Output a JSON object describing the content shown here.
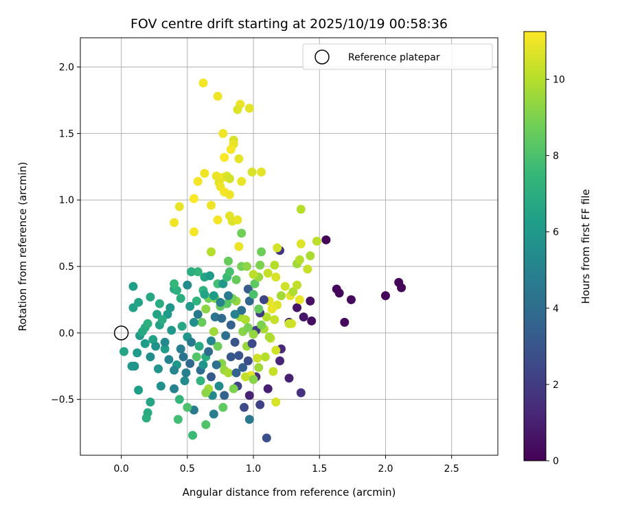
{
  "chart_data": {
    "type": "scatter",
    "title": "FOV centre drift starting at 2025/10/19 00:58:36",
    "xlabel": "Angular distance from reference (arcmin)",
    "ylabel": "Rotation from reference (arcmin)",
    "xlim": [
      -0.31,
      2.85
    ],
    "ylim": [
      -0.92,
      2.22
    ],
    "xticks": [
      "0.0",
      "0.5",
      "1.0",
      "1.5",
      "2.0",
      "2.5"
    ],
    "xtick_values": [
      0,
      0.5,
      1.0,
      1.5,
      2.0,
      2.5
    ],
    "yticks": [
      "−0.5",
      "0.0",
      "0.5",
      "1.0",
      "1.5",
      "2.0"
    ],
    "ytick_values": [
      -0.5,
      0,
      0.5,
      1.0,
      1.5,
      2.0
    ],
    "grid": true,
    "legend": {
      "label": "Reference platepar",
      "position": "top-right"
    },
    "reference_point": {
      "x": 0.0,
      "y": 0.0
    },
    "colorbar": {
      "label": "Hours from first FF file",
      "ticks": [
        "0",
        "2",
        "4",
        "6",
        "8",
        "10"
      ],
      "tick_values": [
        0,
        2,
        4,
        6,
        8,
        10
      ],
      "range": [
        0,
        11.25
      ],
      "colormap": [
        "#440154",
        "#482878",
        "#3e4989",
        "#31688e",
        "#26828e",
        "#1f9e89",
        "#35b779",
        "#6ece58",
        "#b5de2b",
        "#fde725"
      ]
    },
    "points": [
      {
        "x": 1.55,
        "y": 0.7,
        "t": 0.1
      },
      {
        "x": 1.63,
        "y": 0.33,
        "t": 0.2
      },
      {
        "x": 1.65,
        "y": 0.3,
        "t": 0.2
      },
      {
        "x": 1.74,
        "y": 0.25,
        "t": 0.3
      },
      {
        "x": 2.0,
        "y": 0.28,
        "t": 0.1
      },
      {
        "x": 2.1,
        "y": 0.38,
        "t": 0.2
      },
      {
        "x": 2.12,
        "y": 0.34,
        "t": 0.2
      },
      {
        "x": 1.69,
        "y": 0.08,
        "t": 0.3
      },
      {
        "x": 1.44,
        "y": 0.09,
        "t": 0.4
      },
      {
        "x": 1.43,
        "y": 0.24,
        "t": 0.5
      },
      {
        "x": 1.33,
        "y": 0.19,
        "t": 0.6
      },
      {
        "x": 1.38,
        "y": 0.12,
        "t": 0.7
      },
      {
        "x": 1.27,
        "y": 0.08,
        "t": 0.9
      },
      {
        "x": 1.2,
        "y": 0.62,
        "t": 1.8
      },
      {
        "x": 1.36,
        "y": -0.45,
        "t": 1.6
      },
      {
        "x": 1.27,
        "y": -0.34,
        "t": 1.0
      },
      {
        "x": 1.2,
        "y": -0.21,
        "t": 1.2
      },
      {
        "x": 1.21,
        "y": -0.12,
        "t": 1.3
      },
      {
        "x": 1.11,
        "y": -0.42,
        "t": 1.0
      },
      {
        "x": 1.05,
        "y": -0.54,
        "t": 2.2
      },
      {
        "x": 0.97,
        "y": -0.47,
        "t": 1.1
      },
      {
        "x": 0.93,
        "y": -0.56,
        "t": 2.6
      },
      {
        "x": 1.1,
        "y": -0.79,
        "t": 2.8
      },
      {
        "x": 0.97,
        "y": -0.65,
        "t": 4.5
      },
      {
        "x": 1.02,
        "y": -0.33,
        "t": 1.5
      },
      {
        "x": 0.88,
        "y": -0.4,
        "t": 2.3
      },
      {
        "x": 0.78,
        "y": -0.47,
        "t": 3.6
      },
      {
        "x": 0.7,
        "y": -0.61,
        "t": 4.8
      },
      {
        "x": 0.69,
        "y": -0.47,
        "t": 5.3
      },
      {
        "x": 0.68,
        "y": -0.33,
        "t": 3.2
      },
      {
        "x": 0.6,
        "y": -0.28,
        "t": 4.0
      },
      {
        "x": 0.52,
        "y": -0.23,
        "t": 3.8
      },
      {
        "x": 0.47,
        "y": -0.18,
        "t": 4.3
      },
      {
        "x": 0.55,
        "y": -0.58,
        "t": 4.6
      },
      {
        "x": 0.48,
        "y": -0.36,
        "t": 5.4
      },
      {
        "x": 0.4,
        "y": -0.42,
        "t": 5.0
      },
      {
        "x": 0.42,
        "y": -0.24,
        "t": 6.0
      },
      {
        "x": 0.3,
        "y": -0.4,
        "t": 5.6
      },
      {
        "x": 0.28,
        "y": -0.27,
        "t": 5.8
      },
      {
        "x": 0.33,
        "y": -0.12,
        "t": 6.2
      },
      {
        "x": 0.24,
        "y": -0.05,
        "t": 6.4
      },
      {
        "x": 0.2,
        "y": -0.6,
        "t": 6.8
      },
      {
        "x": 0.19,
        "y": -0.64,
        "t": 7.0
      },
      {
        "x": 0.22,
        "y": -0.52,
        "t": 6.6
      },
      {
        "x": 0.13,
        "y": -0.43,
        "t": 6.3
      },
      {
        "x": 0.1,
        "y": -0.25,
        "t": 5.7
      },
      {
        "x": 0.08,
        "y": -0.25,
        "t": 5.9
      },
      {
        "x": 0.02,
        "y": -0.14,
        "t": 6.6
      },
      {
        "x": 0.14,
        "y": -0.02,
        "t": 6.1
      },
      {
        "x": 0.18,
        "y": 0.04,
        "t": 6.9
      },
      {
        "x": 0.09,
        "y": 0.19,
        "t": 6.4
      },
      {
        "x": 0.13,
        "y": 0.23,
        "t": 6.5
      },
      {
        "x": 0.09,
        "y": 0.35,
        "t": 6.3
      },
      {
        "x": 0.22,
        "y": 0.27,
        "t": 6.7
      },
      {
        "x": 0.29,
        "y": 0.22,
        "t": 6.9
      },
      {
        "x": 0.37,
        "y": 0.19,
        "t": 5.9
      },
      {
        "x": 0.35,
        "y": 0.14,
        "t": 6.1
      },
      {
        "x": 0.4,
        "y": 0.33,
        "t": 6.8
      },
      {
        "x": 0.42,
        "y": 0.32,
        "t": 7.1
      },
      {
        "x": 0.45,
        "y": 0.26,
        "t": 7.0
      },
      {
        "x": 0.5,
        "y": 0.36,
        "t": 5.5
      },
      {
        "x": 0.52,
        "y": 0.2,
        "t": 6.0
      },
      {
        "x": 0.57,
        "y": 0.24,
        "t": 7.3
      },
      {
        "x": 0.62,
        "y": 0.32,
        "t": 7.2
      },
      {
        "x": 0.63,
        "y": 0.42,
        "t": 6.6
      },
      {
        "x": 0.67,
        "y": 0.43,
        "t": 6.1
      },
      {
        "x": 0.58,
        "y": 0.46,
        "t": 7.4
      },
      {
        "x": 0.53,
        "y": 0.46,
        "t": 6.3
      },
      {
        "x": 0.73,
        "y": 0.37,
        "t": 7.8
      },
      {
        "x": 0.77,
        "y": 0.37,
        "t": 6.0
      },
      {
        "x": 0.8,
        "y": 0.42,
        "t": 7.6
      },
      {
        "x": 0.82,
        "y": 0.46,
        "t": 7.9
      },
      {
        "x": 0.87,
        "y": 0.4,
        "t": 8.6
      },
      {
        "x": 0.91,
        "y": 0.5,
        "t": 8.8
      },
      {
        "x": 0.95,
        "y": 0.5,
        "t": 9.3
      },
      {
        "x": 0.96,
        "y": 0.33,
        "t": 3.3
      },
      {
        "x": 1.01,
        "y": 0.37,
        "t": 8.4
      },
      {
        "x": 1.04,
        "y": 0.42,
        "t": 9.5
      },
      {
        "x": 1.05,
        "y": 0.51,
        "t": 9.0
      },
      {
        "x": 1.06,
        "y": 0.61,
        "t": 8.7
      },
      {
        "x": 1.0,
        "y": 0.44,
        "t": 10.1
      },
      {
        "x": 1.11,
        "y": 0.45,
        "t": 10.3
      },
      {
        "x": 1.16,
        "y": 0.51,
        "t": 10.0
      },
      {
        "x": 1.17,
        "y": 0.42,
        "t": 10.6
      },
      {
        "x": 1.18,
        "y": 0.64,
        "t": 10.5
      },
      {
        "x": 1.21,
        "y": 0.28,
        "t": 9.7
      },
      {
        "x": 1.24,
        "y": 0.35,
        "t": 10.4
      },
      {
        "x": 1.28,
        "y": 0.28,
        "t": 10.8
      },
      {
        "x": 1.3,
        "y": 0.31,
        "t": 9.9
      },
      {
        "x": 1.33,
        "y": 0.36,
        "t": 10.2
      },
      {
        "x": 1.33,
        "y": 0.52,
        "t": 9.6
      },
      {
        "x": 1.35,
        "y": 0.55,
        "t": 10.0
      },
      {
        "x": 1.35,
        "y": 0.25,
        "t": 10.9
      },
      {
        "x": 1.36,
        "y": 0.67,
        "t": 10.7
      },
      {
        "x": 1.41,
        "y": 0.48,
        "t": 10.3
      },
      {
        "x": 1.43,
        "y": 0.58,
        "t": 9.8
      },
      {
        "x": 1.48,
        "y": 0.69,
        "t": 10.1
      },
      {
        "x": 1.36,
        "y": 0.93,
        "t": 10.0
      },
      {
        "x": 1.29,
        "y": 0.07,
        "t": 10.6
      },
      {
        "x": 1.27,
        "y": 0.07,
        "t": 10.4
      },
      {
        "x": 1.18,
        "y": 0.21,
        "t": 10.7
      },
      {
        "x": 1.16,
        "y": 0.1,
        "t": 10.3
      },
      {
        "x": 1.14,
        "y": 0.18,
        "t": 10.9
      },
      {
        "x": 1.1,
        "y": 0.12,
        "t": 10.0
      },
      {
        "x": 1.12,
        "y": 0.24,
        "t": 10.8
      },
      {
        "x": 1.08,
        "y": 0.03,
        "t": 9.8
      },
      {
        "x": 1.13,
        "y": -0.04,
        "t": 10.2
      },
      {
        "x": 1.17,
        "y": -0.13,
        "t": 10.5
      },
      {
        "x": 1.15,
        "y": -0.29,
        "t": 10.3
      },
      {
        "x": 1.17,
        "y": -0.52,
        "t": 10.6
      },
      {
        "x": 1.03,
        "y": -0.19,
        "t": 10.4
      },
      {
        "x": 0.98,
        "y": -0.32,
        "t": 10.8
      },
      {
        "x": 0.94,
        "y": -0.33,
        "t": 10.2
      },
      {
        "x": 0.95,
        "y": -0.1,
        "t": 9.5
      },
      {
        "x": 0.92,
        "y": 0.01,
        "t": 9.2
      },
      {
        "x": 0.9,
        "y": 0.12,
        "t": 9.7
      },
      {
        "x": 0.94,
        "y": 0.1,
        "t": 9.9
      },
      {
        "x": 0.87,
        "y": 0.24,
        "t": 9.4
      },
      {
        "x": 0.84,
        "y": 0.26,
        "t": 8.9
      },
      {
        "x": 0.8,
        "y": 0.22,
        "t": 8.3
      },
      {
        "x": 0.75,
        "y": 0.2,
        "t": 8.5
      },
      {
        "x": 0.71,
        "y": 0.26,
        "t": 9.1
      },
      {
        "x": 0.66,
        "y": 0.26,
        "t": 8.8
      },
      {
        "x": 0.64,
        "y": 0.18,
        "t": 9.3
      },
      {
        "x": 0.61,
        "y": 0.08,
        "t": 8.6
      },
      {
        "x": 0.7,
        "y": 0.01,
        "t": 9.6
      },
      {
        "x": 0.73,
        "y": -0.1,
        "t": 8.7
      },
      {
        "x": 0.76,
        "y": -0.23,
        "t": 9.2
      },
      {
        "x": 0.78,
        "y": -0.28,
        "t": 9.5
      },
      {
        "x": 0.81,
        "y": -0.3,
        "t": 9.8
      },
      {
        "x": 0.85,
        "y": -0.42,
        "t": 9.0
      },
      {
        "x": 0.66,
        "y": -0.42,
        "t": 9.7
      },
      {
        "x": 0.64,
        "y": -0.45,
        "t": 9.3
      },
      {
        "x": 0.77,
        "y": -0.56,
        "t": 8.4
      },
      {
        "x": 0.64,
        "y": -0.69,
        "t": 8.1
      },
      {
        "x": 0.54,
        "y": -0.77,
        "t": 7.6
      },
      {
        "x": 0.6,
        "y": -0.36,
        "t": 7.2
      },
      {
        "x": 0.5,
        "y": -0.56,
        "t": 8.0
      },
      {
        "x": 0.44,
        "y": -0.5,
        "t": 7.4
      },
      {
        "x": 0.43,
        "y": -0.65,
        "t": 7.8
      },
      {
        "x": 0.64,
        "y": -0.18,
        "t": 7.0
      },
      {
        "x": 0.57,
        "y": -0.18,
        "t": 8.2
      },
      {
        "x": 0.59,
        "y": -0.1,
        "t": 6.8
      },
      {
        "x": 0.68,
        "y": -0.06,
        "t": 5.2
      },
      {
        "x": 0.71,
        "y": 0.12,
        "t": 4.4
      },
      {
        "x": 0.76,
        "y": 0.11,
        "t": 3.9
      },
      {
        "x": 0.79,
        "y": -0.02,
        "t": 4.1
      },
      {
        "x": 0.83,
        "y": 0.06,
        "t": 3.5
      },
      {
        "x": 0.86,
        "y": -0.07,
        "t": 2.9
      },
      {
        "x": 0.89,
        "y": -0.17,
        "t": 3.0
      },
      {
        "x": 0.92,
        "y": -0.26,
        "t": 3.4
      },
      {
        "x": 0.96,
        "y": -0.21,
        "t": 2.7
      },
      {
        "x": 0.99,
        "y": -0.08,
        "t": 2.5
      },
      {
        "x": 1.02,
        "y": 0.02,
        "t": 2.1
      },
      {
        "x": 1.05,
        "y": 0.15,
        "t": 1.9
      },
      {
        "x": 1.08,
        "y": 0.25,
        "t": 2.4
      },
      {
        "x": 0.97,
        "y": 0.24,
        "t": 3.7
      },
      {
        "x": 0.91,
        "y": 0.17,
        "t": 4.2
      },
      {
        "x": 0.86,
        "y": 0.14,
        "t": 5.0
      },
      {
        "x": 0.81,
        "y": 0.28,
        "t": 4.7
      },
      {
        "x": 0.75,
        "y": 0.23,
        "t": 5.1
      },
      {
        "x": 0.7,
        "y": 0.28,
        "t": 6.2
      },
      {
        "x": 0.63,
        "y": 0.29,
        "t": 6.5
      },
      {
        "x": 0.55,
        "y": 0.08,
        "t": 5.6
      },
      {
        "x": 0.5,
        "y": -0.03,
        "t": 5.9
      },
      {
        "x": 0.46,
        "y": 0.05,
        "t": 6.7
      },
      {
        "x": 0.38,
        "y": 0.02,
        "t": 6.0
      },
      {
        "x": 0.33,
        "y": -0.07,
        "t": 5.3
      },
      {
        "x": 0.29,
        "y": 0.06,
        "t": 6.4
      },
      {
        "x": 0.26,
        "y": -0.1,
        "t": 5.7
      },
      {
        "x": 0.22,
        "y": -0.18,
        "t": 5.5
      },
      {
        "x": 0.18,
        "y": -0.08,
        "t": 6.2
      },
      {
        "x": 0.16,
        "y": 0.01,
        "t": 6.8
      },
      {
        "x": 0.12,
        "y": -0.15,
        "t": 6.1
      },
      {
        "x": 0.2,
        "y": 0.07,
        "t": 7.1
      },
      {
        "x": 0.27,
        "y": 0.14,
        "t": 6.5
      },
      {
        "x": 0.31,
        "y": 0.1,
        "t": 6.9
      },
      {
        "x": 0.36,
        "y": -0.2,
        "t": 5.0
      },
      {
        "x": 0.4,
        "y": -0.28,
        "t": 5.2
      },
      {
        "x": 0.45,
        "y": -0.12,
        "t": 4.8
      },
      {
        "x": 0.49,
        "y": -0.3,
        "t": 4.9
      },
      {
        "x": 0.53,
        "y": -0.07,
        "t": 4.6
      },
      {
        "x": 0.58,
        "y": 0.14,
        "t": 4.5
      },
      {
        "x": 0.62,
        "y": -0.24,
        "t": 5.8
      },
      {
        "x": 0.66,
        "y": -0.14,
        "t": 3.9
      },
      {
        "x": 0.72,
        "y": -0.24,
        "t": 4.2
      },
      {
        "x": 0.74,
        "y": -0.4,
        "t": 5.4
      },
      {
        "x": 0.83,
        "y": -0.18,
        "t": 3.1
      },
      {
        "x": 0.87,
        "y": -0.3,
        "t": 3.6
      },
      {
        "x": 0.62,
        "y": 1.88,
        "t": 11.1
      },
      {
        "x": 0.73,
        "y": 1.78,
        "t": 11.0
      },
      {
        "x": 0.9,
        "y": 1.72,
        "t": 10.9
      },
      {
        "x": 0.88,
        "y": 1.68,
        "t": 10.7
      },
      {
        "x": 0.97,
        "y": 1.69,
        "t": 10.8
      },
      {
        "x": 0.77,
        "y": 1.5,
        "t": 11.0
      },
      {
        "x": 0.85,
        "y": 1.45,
        "t": 10.6
      },
      {
        "x": 0.85,
        "y": 1.42,
        "t": 10.9
      },
      {
        "x": 0.83,
        "y": 1.38,
        "t": 11.1
      },
      {
        "x": 0.89,
        "y": 1.31,
        "t": 10.8
      },
      {
        "x": 0.78,
        "y": 1.32,
        "t": 11.2
      },
      {
        "x": 0.63,
        "y": 1.2,
        "t": 11.0
      },
      {
        "x": 0.58,
        "y": 1.14,
        "t": 11.1
      },
      {
        "x": 0.72,
        "y": 1.18,
        "t": 10.9
      },
      {
        "x": 0.77,
        "y": 1.17,
        "t": 11.0
      },
      {
        "x": 0.8,
        "y": 1.18,
        "t": 10.7
      },
      {
        "x": 0.82,
        "y": 1.16,
        "t": 10.5
      },
      {
        "x": 0.74,
        "y": 1.13,
        "t": 10.8
      },
      {
        "x": 0.75,
        "y": 1.1,
        "t": 11.0
      },
      {
        "x": 0.78,
        "y": 1.06,
        "t": 11.1
      },
      {
        "x": 0.82,
        "y": 1.04,
        "t": 11.0
      },
      {
        "x": 0.91,
        "y": 1.14,
        "t": 10.9
      },
      {
        "x": 0.99,
        "y": 1.21,
        "t": 10.6
      },
      {
        "x": 1.06,
        "y": 1.21,
        "t": 10.8
      },
      {
        "x": 0.55,
        "y": 1.01,
        "t": 11.2
      },
      {
        "x": 0.68,
        "y": 0.96,
        "t": 11.0
      },
      {
        "x": 0.44,
        "y": 0.95,
        "t": 10.9
      },
      {
        "x": 0.82,
        "y": 0.88,
        "t": 10.8
      },
      {
        "x": 0.84,
        "y": 0.84,
        "t": 10.7
      },
      {
        "x": 0.88,
        "y": 0.85,
        "t": 10.9
      },
      {
        "x": 0.73,
        "y": 0.85,
        "t": 11.1
      },
      {
        "x": 0.4,
        "y": 0.83,
        "t": 11.0
      },
      {
        "x": 0.55,
        "y": 0.76,
        "t": 11.1
      },
      {
        "x": 0.91,
        "y": 0.75,
        "t": 8.8
      },
      {
        "x": 0.68,
        "y": 0.61,
        "t": 10.0
      },
      {
        "x": 0.89,
        "y": 0.65,
        "t": 10.9
      },
      {
        "x": 0.81,
        "y": 0.54,
        "t": 8.6
      },
      {
        "x": 0.53,
        "y": 0.46,
        "t": 7.0
      },
      {
        "x": 0.4,
        "y": 0.37,
        "t": 7.5
      },
      {
        "x": 1.0,
        "y": 0.29,
        "t": 8.0
      },
      {
        "x": 1.04,
        "y": 0.18,
        "t": 8.5
      },
      {
        "x": 1.06,
        "y": 0.06,
        "t": 9.0
      },
      {
        "x": 1.0,
        "y": -0.01,
        "t": 9.4
      },
      {
        "x": 0.96,
        "y": 0.04,
        "t": 8.9
      },
      {
        "x": 1.12,
        "y": -0.03,
        "t": 9.8
      },
      {
        "x": 1.09,
        "y": -0.18,
        "t": 10.0
      },
      {
        "x": 1.04,
        "y": -0.26,
        "t": 9.6
      },
      {
        "x": 1.0,
        "y": -0.35,
        "t": 9.2
      }
    ]
  }
}
